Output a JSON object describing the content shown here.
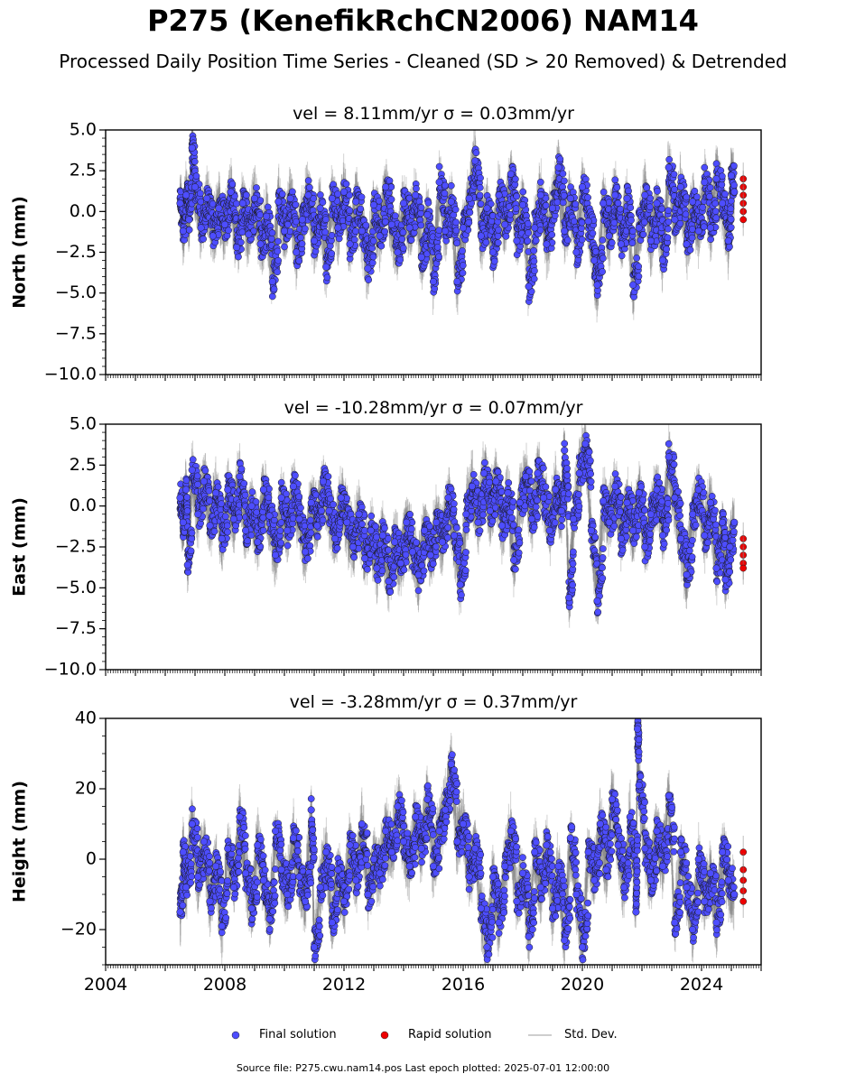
{
  "title": "P275 (KenefikRchCN2006) NAM14",
  "subtitle": "Processed Daily Position Time Series - Cleaned (SD > 20 Removed) & Detrended",
  "footer": "Source file: P275.cwu.nam14.pos  Last epoch plotted: 2025-07-01 12:00:00",
  "legend": {
    "final": "Final solution",
    "rapid": "Rapid solution",
    "sd": "Std. Dev."
  },
  "colors": {
    "final": "#4d4dff",
    "rapid": "#ee0000",
    "sd": "#7f7f7f"
  },
  "chart_data": [
    {
      "type": "scatter",
      "component": "north",
      "title": "vel = 8.11mm/yr   σ = 0.03mm/yr",
      "ylabel": "North (mm)",
      "ylim": [
        -10,
        5
      ],
      "yticks": [
        5,
        2.5,
        0,
        -2.5,
        -5,
        -7.5,
        -10
      ],
      "ytick_labels": [
        "5.0",
        "2.5",
        "0.0",
        "−2.5",
        "−5.0",
        "−7.5",
        "−10.0"
      ],
      "xlim": [
        2004,
        2026
      ],
      "series_final": [
        [
          2006.5,
          0.5
        ],
        [
          2006.6,
          -1.2
        ],
        [
          2006.7,
          1.0
        ],
        [
          2006.8,
          -0.5
        ],
        [
          2006.9,
          3.9
        ],
        [
          2007.0,
          1.5
        ],
        [
          2007.2,
          -1.0
        ],
        [
          2007.4,
          0.8
        ],
        [
          2007.6,
          -1.5
        ],
        [
          2007.8,
          0.2
        ],
        [
          2008.0,
          -0.8
        ],
        [
          2008.2,
          1.2
        ],
        [
          2008.4,
          -2.2
        ],
        [
          2008.6,
          0.5
        ],
        [
          2008.8,
          -1.4
        ],
        [
          2009.0,
          0.8
        ],
        [
          2009.2,
          -2.0
        ],
        [
          2009.4,
          -0.3
        ],
        [
          2009.6,
          -4.3
        ],
        [
          2009.8,
          0.6
        ],
        [
          2010.0,
          -1.2
        ],
        [
          2010.2,
          0.8
        ],
        [
          2010.4,
          -2.5
        ],
        [
          2010.6,
          -0.5
        ],
        [
          2010.8,
          1.0
        ],
        [
          2011.0,
          -1.8
        ],
        [
          2011.2,
          0.2
        ],
        [
          2011.4,
          -3.4
        ],
        [
          2011.6,
          0.8
        ],
        [
          2011.8,
          -1.0
        ],
        [
          2012.0,
          1.2
        ],
        [
          2012.2,
          -2.0
        ],
        [
          2012.4,
          0.6
        ],
        [
          2012.6,
          -1.2
        ],
        [
          2012.8,
          -3.5
        ],
        [
          2013.0,
          0.4
        ],
        [
          2013.2,
          -1.5
        ],
        [
          2013.4,
          1.5
        ],
        [
          2013.6,
          -0.8
        ],
        [
          2013.8,
          -2.5
        ],
        [
          2014.0,
          0.5
        ],
        [
          2014.2,
          -1.0
        ],
        [
          2014.4,
          1.0
        ],
        [
          2014.6,
          -2.8
        ],
        [
          2014.8,
          -0.2
        ],
        [
          2015.0,
          -4.3
        ],
        [
          2015.2,
          1.8
        ],
        [
          2015.4,
          -1.2
        ],
        [
          2015.6,
          0.6
        ],
        [
          2015.8,
          -4.3
        ],
        [
          2016.0,
          -1.0
        ],
        [
          2016.2,
          0.8
        ],
        [
          2016.4,
          3.1
        ],
        [
          2016.6,
          -1.5
        ],
        [
          2016.8,
          0.2
        ],
        [
          2017.0,
          -2.5
        ],
        [
          2017.2,
          1.0
        ],
        [
          2017.4,
          -0.8
        ],
        [
          2017.6,
          2.3
        ],
        [
          2017.8,
          -1.8
        ],
        [
          2018.0,
          0.4
        ],
        [
          2018.2,
          -4.6
        ],
        [
          2018.4,
          -1.0
        ],
        [
          2018.6,
          1.0
        ],
        [
          2018.8,
          -2.0
        ],
        [
          2019.0,
          0.2
        ],
        [
          2019.2,
          2.7
        ],
        [
          2019.4,
          -1.2
        ],
        [
          2019.6,
          0.8
        ],
        [
          2019.8,
          -2.5
        ],
        [
          2020.0,
          1.5
        ],
        [
          2020.2,
          -0.6
        ],
        [
          2020.4,
          -3.0
        ],
        [
          2020.5,
          -4.5
        ],
        [
          2020.7,
          0.5
        ],
        [
          2020.9,
          -1.5
        ],
        [
          2021.1,
          1.0
        ],
        [
          2021.3,
          -2.0
        ],
        [
          2021.5,
          0.8
        ],
        [
          2021.7,
          -4.5
        ],
        [
          2021.9,
          -1.0
        ],
        [
          2022.1,
          1.0
        ],
        [
          2022.3,
          -1.8
        ],
        [
          2022.5,
          0.5
        ],
        [
          2022.7,
          -3.0
        ],
        [
          2022.9,
          2.7
        ],
        [
          2023.1,
          -0.5
        ],
        [
          2023.3,
          1.5
        ],
        [
          2023.5,
          -2.0
        ],
        [
          2023.7,
          0.6
        ],
        [
          2023.9,
          -1.2
        ],
        [
          2024.1,
          1.8
        ],
        [
          2024.3,
          -1.0
        ],
        [
          2024.5,
          2.0
        ],
        [
          2024.7,
          0.5
        ],
        [
          2024.9,
          -1.8
        ],
        [
          2025.0,
          2.2
        ],
        [
          2025.1,
          1.2
        ]
      ],
      "series_rapid": [
        [
          2025.4,
          2.0
        ],
        [
          2025.4,
          1.5
        ],
        [
          2025.4,
          1.0
        ],
        [
          2025.4,
          0.5
        ],
        [
          2025.4,
          0.0
        ],
        [
          2025.4,
          -0.5
        ]
      ]
    },
    {
      "type": "scatter",
      "component": "east",
      "title": "vel = -10.28mm/yr   σ = 0.07mm/yr",
      "ylabel": "East (mm)",
      "ylim": [
        -10,
        5
      ],
      "yticks": [
        5,
        2.5,
        0,
        -2.5,
        -5,
        -7.5,
        -10
      ],
      "ytick_labels": [
        "5.0",
        "2.5",
        "0.0",
        "−2.5",
        "−5.0",
        "−7.5",
        "−10.0"
      ],
      "xlim": [
        2004,
        2026
      ],
      "series_final": [
        [
          2006.5,
          0.5
        ],
        [
          2006.6,
          -1.0
        ],
        [
          2006.7,
          1.0
        ],
        [
          2006.75,
          -3.6
        ],
        [
          2006.9,
          2.2
        ],
        [
          2007.1,
          -0.5
        ],
        [
          2007.3,
          1.5
        ],
        [
          2007.5,
          -1.2
        ],
        [
          2007.7,
          0.8
        ],
        [
          2007.9,
          -2.0
        ],
        [
          2008.1,
          1.0
        ],
        [
          2008.3,
          -0.8
        ],
        [
          2008.5,
          1.8
        ],
        [
          2008.7,
          -1.5
        ],
        [
          2008.9,
          0.0
        ],
        [
          2009.1,
          -2.2
        ],
        [
          2009.3,
          1.0
        ],
        [
          2009.5,
          -0.6
        ],
        [
          2009.7,
          -3.0
        ],
        [
          2009.9,
          0.5
        ],
        [
          2010.1,
          -1.5
        ],
        [
          2010.3,
          1.2
        ],
        [
          2010.5,
          -0.8
        ],
        [
          2010.7,
          -2.8
        ],
        [
          2010.9,
          0.2
        ],
        [
          2011.1,
          -1.2
        ],
        [
          2011.3,
          1.5
        ],
        [
          2011.5,
          -0.3
        ],
        [
          2011.7,
          -2.0
        ],
        [
          2011.9,
          0.5
        ],
        [
          2012.1,
          -1.0
        ],
        [
          2012.3,
          -2.5
        ],
        [
          2012.5,
          -0.5
        ],
        [
          2012.7,
          -3.2
        ],
        [
          2012.9,
          -1.5
        ],
        [
          2013.1,
          -3.8
        ],
        [
          2013.3,
          -1.8
        ],
        [
          2013.5,
          -4.6
        ],
        [
          2013.7,
          -2.2
        ],
        [
          2013.9,
          -3.5
        ],
        [
          2014.1,
          -1.0
        ],
        [
          2014.3,
          -2.8
        ],
        [
          2014.5,
          -4.2
        ],
        [
          2014.7,
          -1.5
        ],
        [
          2014.9,
          -3.0
        ],
        [
          2015.1,
          -1.0
        ],
        [
          2015.3,
          -2.2
        ],
        [
          2015.5,
          0.5
        ],
        [
          2015.7,
          -1.8
        ],
        [
          2015.9,
          -4.8
        ],
        [
          2016.1,
          -0.5
        ],
        [
          2016.3,
          1.2
        ],
        [
          2016.5,
          -1.0
        ],
        [
          2016.7,
          2.0
        ],
        [
          2016.9,
          -0.3
        ],
        [
          2017.1,
          1.5
        ],
        [
          2017.3,
          -1.2
        ],
        [
          2017.5,
          0.8
        ],
        [
          2017.7,
          -3.3
        ],
        [
          2017.9,
          0.2
        ],
        [
          2018.1,
          1.8
        ],
        [
          2018.3,
          -0.8
        ],
        [
          2018.5,
          2.0
        ],
        [
          2018.7,
          0.5
        ],
        [
          2018.9,
          -1.5
        ],
        [
          2019.1,
          1.0
        ],
        [
          2019.3,
          -0.3
        ],
        [
          2019.4,
          3.4
        ],
        [
          2019.55,
          -5.6
        ],
        [
          2019.7,
          -0.8
        ],
        [
          2019.9,
          2.0
        ],
        [
          2020.1,
          3.8
        ],
        [
          2020.3,
          -1.5
        ],
        [
          2020.5,
          -5.8
        ],
        [
          2020.7,
          0.3
        ],
        [
          2020.9,
          -1.0
        ],
        [
          2021.1,
          1.2
        ],
        [
          2021.3,
          -2.0
        ],
        [
          2021.5,
          0.2
        ],
        [
          2021.7,
          -1.5
        ],
        [
          2021.9,
          0.8
        ],
        [
          2022.1,
          -2.5
        ],
        [
          2022.3,
          -0.5
        ],
        [
          2022.5,
          1.0
        ],
        [
          2022.7,
          -1.8
        ],
        [
          2022.9,
          3.0
        ],
        [
          2023.1,
          0.5
        ],
        [
          2023.3,
          -2.0
        ],
        [
          2023.5,
          -4.2
        ],
        [
          2023.7,
          -0.5
        ],
        [
          2023.9,
          1.0
        ],
        [
          2024.1,
          -1.8
        ],
        [
          2024.3,
          0.2
        ],
        [
          2024.5,
          -3.8
        ],
        [
          2024.7,
          -1.0
        ],
        [
          2024.8,
          -4.5
        ],
        [
          2024.95,
          -2.5
        ],
        [
          2025.1,
          -1.0
        ]
      ],
      "series_rapid": [
        [
          2025.4,
          -2.0
        ],
        [
          2025.4,
          -2.5
        ],
        [
          2025.4,
          -3.0
        ],
        [
          2025.4,
          -3.5
        ],
        [
          2025.4,
          -3.8
        ]
      ]
    },
    {
      "type": "scatter",
      "component": "height",
      "title": "vel = -3.28mm/yr   σ = 0.37mm/yr",
      "ylabel": "Height (mm)",
      "ylim": [
        -30,
        40
      ],
      "yticks": [
        40,
        20,
        0,
        -20
      ],
      "ytick_labels": [
        "40",
        "20",
        "0",
        "−20"
      ],
      "xlim": [
        2004,
        2026
      ],
      "xticks": [
        2004,
        2008,
        2012,
        2016,
        2020,
        2024
      ],
      "xtick_labels": [
        "2004",
        "2008",
        "2012",
        "2016",
        "2020",
        "2024"
      ],
      "series_final": [
        [
          2006.5,
          -15
        ],
        [
          2006.6,
          2
        ],
        [
          2006.7,
          -8
        ],
        [
          2006.9,
          10
        ],
        [
          2007.1,
          -5
        ],
        [
          2007.3,
          5
        ],
        [
          2007.5,
          -12
        ],
        [
          2007.7,
          -2
        ],
        [
          2007.9,
          -19
        ],
        [
          2008.1,
          3
        ],
        [
          2008.3,
          -8
        ],
        [
          2008.5,
          12
        ],
        [
          2008.7,
          -4
        ],
        [
          2008.9,
          -14
        ],
        [
          2009.1,
          4
        ],
        [
          2009.3,
          -6
        ],
        [
          2009.5,
          -17
        ],
        [
          2009.7,
          8
        ],
        [
          2009.9,
          -3
        ],
        [
          2010.1,
          -10
        ],
        [
          2010.3,
          6
        ],
        [
          2010.5,
          -5
        ],
        [
          2010.7,
          -12
        ],
        [
          2010.9,
          14
        ],
        [
          2011.0,
          -25
        ],
        [
          2011.2,
          -8
        ],
        [
          2011.4,
          2
        ],
        [
          2011.6,
          -18
        ],
        [
          2011.8,
          -3
        ],
        [
          2012.0,
          -12
        ],
        [
          2012.2,
          4
        ],
        [
          2012.4,
          -6
        ],
        [
          2012.6,
          10
        ],
        [
          2012.8,
          -10
        ],
        [
          2013.0,
          0
        ],
        [
          2013.2,
          -4
        ],
        [
          2013.4,
          8
        ],
        [
          2013.6,
          2
        ],
        [
          2013.8,
          15
        ],
        [
          2014.0,
          5
        ],
        [
          2014.2,
          -2
        ],
        [
          2014.4,
          12
        ],
        [
          2014.6,
          3
        ],
        [
          2014.8,
          17
        ],
        [
          2015.0,
          -2
        ],
        [
          2015.2,
          8
        ],
        [
          2015.4,
          14
        ],
        [
          2015.6,
          27
        ],
        [
          2015.8,
          5
        ],
        [
          2016.0,
          10
        ],
        [
          2016.2,
          -5
        ],
        [
          2016.4,
          3
        ],
        [
          2016.6,
          -14
        ],
        [
          2016.8,
          -25
        ],
        [
          2017.0,
          -5
        ],
        [
          2017.2,
          -18
        ],
        [
          2017.4,
          -2
        ],
        [
          2017.6,
          8
        ],
        [
          2017.8,
          -12
        ],
        [
          2018.0,
          -4
        ],
        [
          2018.2,
          -22
        ],
        [
          2018.4,
          2
        ],
        [
          2018.6,
          -8
        ],
        [
          2018.8,
          4
        ],
        [
          2019.0,
          -14
        ],
        [
          2019.2,
          -2
        ],
        [
          2019.4,
          -23
        ],
        [
          2019.6,
          6
        ],
        [
          2019.8,
          -10
        ],
        [
          2020.0,
          -25
        ],
        [
          2020.2,
          2
        ],
        [
          2020.4,
          -6
        ],
        [
          2020.6,
          10
        ],
        [
          2020.8,
          -3
        ],
        [
          2021.0,
          17
        ],
        [
          2021.2,
          4
        ],
        [
          2021.4,
          -8
        ],
        [
          2021.6,
          12
        ],
        [
          2021.8,
          -15
        ],
        [
          2021.85,
          37
        ],
        [
          2021.9,
          21
        ],
        [
          2022.1,
          3
        ],
        [
          2022.3,
          -6
        ],
        [
          2022.5,
          8
        ],
        [
          2022.7,
          -2
        ],
        [
          2022.9,
          18
        ],
        [
          2023.1,
          -18
        ],
        [
          2023.3,
          2
        ],
        [
          2023.5,
          -8
        ],
        [
          2023.7,
          -20
        ],
        [
          2023.9,
          0
        ],
        [
          2024.1,
          -12
        ],
        [
          2024.3,
          -4
        ],
        [
          2024.5,
          -18
        ],
        [
          2024.7,
          2
        ],
        [
          2024.9,
          -6
        ],
        [
          2025.1,
          -10
        ]
      ],
      "series_rapid": [
        [
          2025.4,
          2
        ],
        [
          2025.4,
          -3
        ],
        [
          2025.4,
          -6
        ],
        [
          2025.4,
          -9
        ],
        [
          2025.4,
          -12
        ]
      ]
    }
  ]
}
